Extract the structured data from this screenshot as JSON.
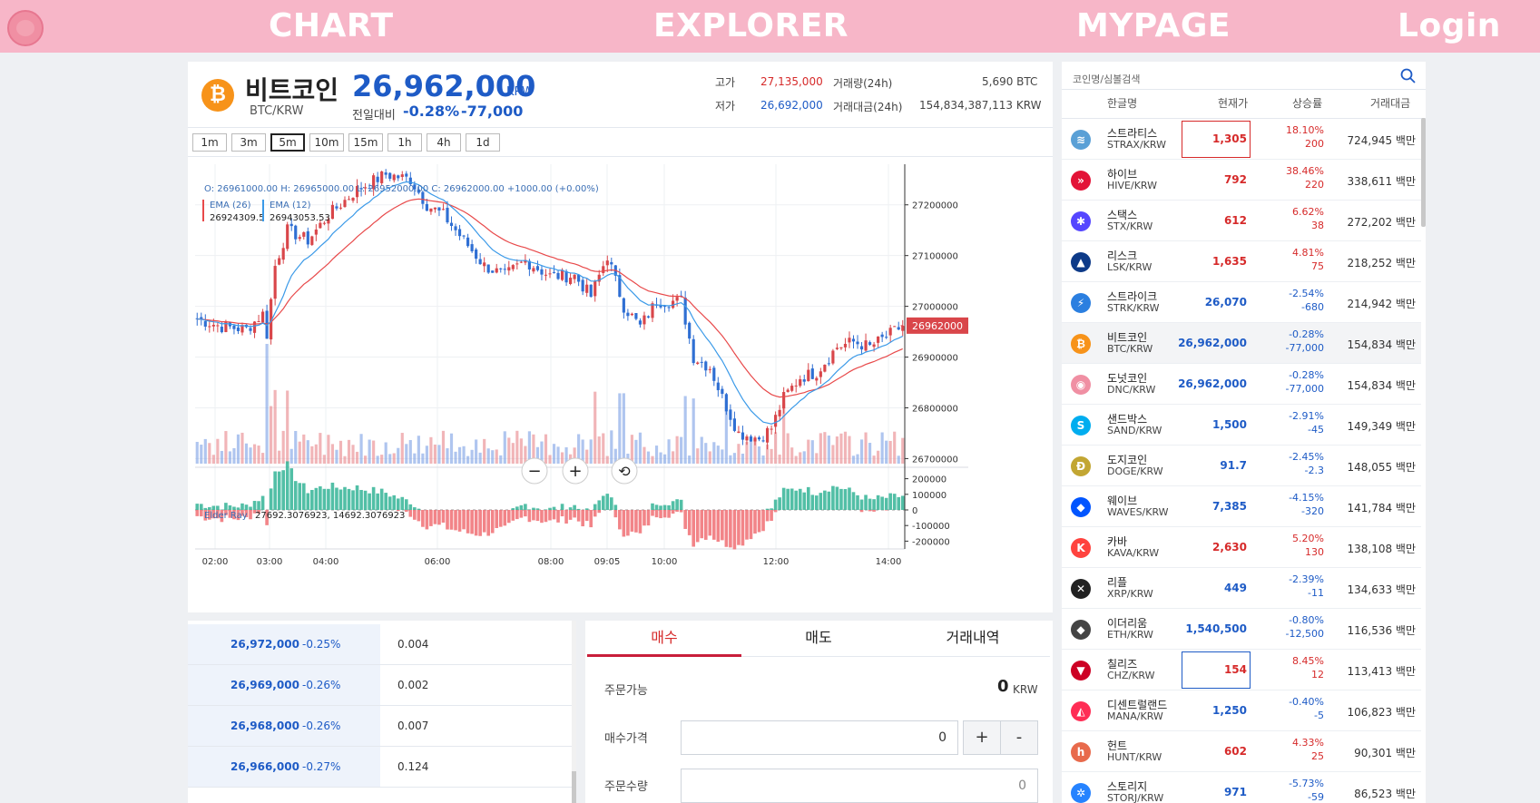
{
  "nav": {
    "chart": "CHART",
    "explorer": "EXPLORER",
    "mypage": "MYPAGE",
    "login": "Login"
  },
  "colors": {
    "rise": "#d62a2a",
    "fall": "#1e5bc6",
    "nav": "#f7b6c8",
    "ema26": "#e8494a",
    "ema12": "#3b9ae8"
  },
  "ticker": {
    "icon": "bitcoin-icon",
    "name": "비트코인",
    "pair": "BTC/KRW",
    "price": "26,962,000",
    "unit": "KRW",
    "change_label": "전일대비",
    "change_rate": "-0.28%",
    "change_amount": "-77,000",
    "high_label": "고가",
    "high": "27,135,000",
    "low_label": "저가",
    "low": "26,692,000",
    "vol_label": "거래량(24h)",
    "vol": "5,690 BTC",
    "amount_label": "거래대금(24h)",
    "amount": "154,834,387,113 KRW"
  },
  "timeframes": [
    "1m",
    "3m",
    "5m",
    "10m",
    "15m",
    "1h",
    "4h",
    "1d"
  ],
  "active_timeframe": "5m",
  "chart_data": {
    "type": "candlestick",
    "ohlc_label": "O: 26961000.00  H: 26965000.00  L: 26952000.00  C: 26962000.00  +1000.00 (+0.00%)",
    "ema26_label": "EMA (26)",
    "ema26_value": "26924309.5",
    "ema12_label": "EMA (12)",
    "ema12_value": "26943053.53",
    "y_ticks": [
      "27200000",
      "27100000",
      "27000000",
      "26900000",
      "26800000",
      "26700000"
    ],
    "ylim": [
      26690000,
      27280000
    ],
    "last_price_label": "26962000",
    "x_ticks": [
      "02:00",
      "03:00",
      "04:00",
      "06:00",
      "08:00",
      "09:05",
      "10:00",
      "12:00",
      "14:00"
    ],
    "elder_label": "Elder Ray",
    "elder_value": "27692.3076923, 14692.3076923",
    "elder_ticks": [
      "200000",
      "100000",
      "0",
      "-100000",
      "-200000"
    ],
    "elder_ylim": [
      -250000,
      250000
    ],
    "close_anchors": [
      [
        0,
        26975000
      ],
      [
        6,
        26960000
      ],
      [
        12,
        26955000
      ],
      [
        16,
        26985000
      ],
      [
        17,
        26945000
      ],
      [
        19,
        27080000
      ],
      [
        22,
        27150000
      ],
      [
        27,
        27130000
      ],
      [
        32,
        27180000
      ],
      [
        39,
        27230000
      ],
      [
        46,
        27260000
      ],
      [
        52,
        27250000
      ],
      [
        56,
        27200000
      ],
      [
        60,
        27180000
      ],
      [
        65,
        27130000
      ],
      [
        70,
        27080000
      ],
      [
        75,
        27060000
      ],
      [
        80,
        27090000
      ],
      [
        86,
        27060000
      ],
      [
        92,
        27060000
      ],
      [
        96,
        27020000
      ],
      [
        100,
        27100000
      ],
      [
        104,
        27000000
      ],
      [
        108,
        26960000
      ],
      [
        112,
        27010000
      ],
      [
        118,
        27010000
      ],
      [
        121,
        26900000
      ],
      [
        125,
        26880000
      ],
      [
        128,
        26820000
      ],
      [
        132,
        26750000
      ],
      [
        137,
        26740000
      ],
      [
        140,
        26760000
      ],
      [
        143,
        26820000
      ],
      [
        147,
        26860000
      ],
      [
        151,
        26870000
      ],
      [
        156,
        26920000
      ],
      [
        160,
        26930000
      ],
      [
        164,
        26920000
      ],
      [
        168,
        26940000
      ],
      [
        172,
        26962000
      ]
    ],
    "volume_level": 0.25
  },
  "zoom_controls": {
    "out": "−",
    "in": "+",
    "reset": "⟲"
  },
  "orderbook": [
    {
      "price": "26,972,000",
      "rate": "-0.25%",
      "qty": "0.004"
    },
    {
      "price": "26,969,000",
      "rate": "-0.26%",
      "qty": "0.002"
    },
    {
      "price": "26,968,000",
      "rate": "-0.26%",
      "qty": "0.007"
    },
    {
      "price": "26,966,000",
      "rate": "-0.27%",
      "qty": "0.124"
    }
  ],
  "order": {
    "tabs": [
      "매수",
      "매도",
      "거래내역"
    ],
    "active_tab": "매수",
    "available_label": "주문가능",
    "available_value": "0",
    "available_unit": "KRW",
    "price_label": "매수가격",
    "price_value": "0",
    "plus": "+",
    "minus": "-",
    "qty_label": "주문수량",
    "qty_placeholder": "0"
  },
  "coinlist": {
    "search_placeholder": "코인명/심볼검색",
    "headers": [
      "한글명",
      "현재가",
      "상승률",
      "거래대금"
    ],
    "rows": [
      {
        "icon": "stratis-icon",
        "glyph": "≋",
        "icon_color": "#5aa0d6",
        "name": "스트라티스",
        "pair": "STRAX/KRW",
        "price": "1,305",
        "rate": "18.10%",
        "amt": "200",
        "vol": "724,945 백만",
        "dir": "up",
        "flash": "up"
      },
      {
        "icon": "hive-icon",
        "glyph": "»",
        "icon_color": "#e31337",
        "name": "하이브",
        "pair": "HIVE/KRW",
        "price": "792",
        "rate": "38.46%",
        "amt": "220",
        "vol": "338,611 백만",
        "dir": "up"
      },
      {
        "icon": "stacks-icon",
        "glyph": "✱",
        "icon_color": "#5546ff",
        "name": "스택스",
        "pair": "STX/KRW",
        "price": "612",
        "rate": "6.62%",
        "amt": "38",
        "vol": "272,202 백만",
        "dir": "up"
      },
      {
        "icon": "lisk-icon",
        "glyph": "▲",
        "icon_color": "#0d3a88",
        "name": "리스크",
        "pair": "LSK/KRW",
        "price": "1,635",
        "rate": "4.81%",
        "amt": "75",
        "vol": "218,252 백만",
        "dir": "up"
      },
      {
        "icon": "strike-icon",
        "glyph": "⚡",
        "icon_color": "#2b7fe0",
        "name": "스트라이크",
        "pair": "STRK/KRW",
        "price": "26,070",
        "rate": "-2.54%",
        "amt": "-680",
        "vol": "214,942 백만",
        "dir": "dn"
      },
      {
        "icon": "bitcoin-icon",
        "glyph": "₿",
        "icon_color": "#f7931a",
        "name": "비트코인",
        "pair": "BTC/KRW",
        "price": "26,962,000",
        "rate": "-0.28%",
        "amt": "-77,000",
        "vol": "154,834 백만",
        "dir": "dn",
        "selected": true
      },
      {
        "icon": "donut-coin-icon",
        "glyph": "◉",
        "icon_color": "#f08fa3",
        "name": "도넛코인",
        "pair": "DNC/KRW",
        "price": "26,962,000",
        "rate": "-0.28%",
        "amt": "-77,000",
        "vol": "154,834 백만",
        "dir": "dn"
      },
      {
        "icon": "sandbox-icon",
        "glyph": "S",
        "icon_color": "#00adef",
        "name": "샌드박스",
        "pair": "SAND/KRW",
        "price": "1,500",
        "rate": "-2.91%",
        "amt": "-45",
        "vol": "149,349 백만",
        "dir": "dn"
      },
      {
        "icon": "dogecoin-icon",
        "glyph": "Ð",
        "icon_color": "#c2a633",
        "name": "도지코인",
        "pair": "DOGE/KRW",
        "price": "91.7",
        "rate": "-2.45%",
        "amt": "-2.3",
        "vol": "148,055 백만",
        "dir": "dn"
      },
      {
        "icon": "waves-icon",
        "glyph": "◆",
        "icon_color": "#0155ff",
        "name": "웨이브",
        "pair": "WAVES/KRW",
        "price": "7,385",
        "rate": "-4.15%",
        "amt": "-320",
        "vol": "141,784 백만",
        "dir": "dn"
      },
      {
        "icon": "kava-icon",
        "glyph": "K",
        "icon_color": "#ff433e",
        "name": "카바",
        "pair": "KAVA/KRW",
        "price": "2,630",
        "rate": "5.20%",
        "amt": "130",
        "vol": "138,108 백만",
        "dir": "up"
      },
      {
        "icon": "xrp-icon",
        "glyph": "✕",
        "icon_color": "#222222",
        "name": "리플",
        "pair": "XRP/KRW",
        "price": "449",
        "rate": "-2.39%",
        "amt": "-11",
        "vol": "134,633 백만",
        "dir": "dn"
      },
      {
        "icon": "ethereum-icon",
        "glyph": "◆",
        "icon_color": "#444444",
        "name": "이더리움",
        "pair": "ETH/KRW",
        "price": "1,540,500",
        "rate": "-0.80%",
        "amt": "-12,500",
        "vol": "116,536 백만",
        "dir": "dn"
      },
      {
        "icon": "chiliz-icon",
        "glyph": "▼",
        "icon_color": "#cd0124",
        "name": "칠리즈",
        "pair": "CHZ/KRW",
        "price": "154",
        "rate": "8.45%",
        "amt": "12",
        "vol": "113,413 백만",
        "dir": "up",
        "flash": "dn"
      },
      {
        "icon": "decentraland-icon",
        "glyph": "◭",
        "icon_color": "#ff2d55",
        "name": "디센트럴랜드",
        "pair": "MANA/KRW",
        "price": "1,250",
        "rate": "-0.40%",
        "amt": "-5",
        "vol": "106,823 백만",
        "dir": "dn"
      },
      {
        "icon": "hunt-icon",
        "glyph": "h",
        "icon_color": "#e86a4c",
        "name": "헌트",
        "pair": "HUNT/KRW",
        "price": "602",
        "rate": "4.33%",
        "amt": "25",
        "vol": "90,301 백만",
        "dir": "up"
      },
      {
        "icon": "storj-icon",
        "glyph": "✲",
        "icon_color": "#2683ff",
        "name": "스토리지",
        "pair": "STORJ/KRW",
        "price": "971",
        "rate": "-5.73%",
        "amt": "-59",
        "vol": "86,523 백만",
        "dir": "dn"
      }
    ]
  }
}
